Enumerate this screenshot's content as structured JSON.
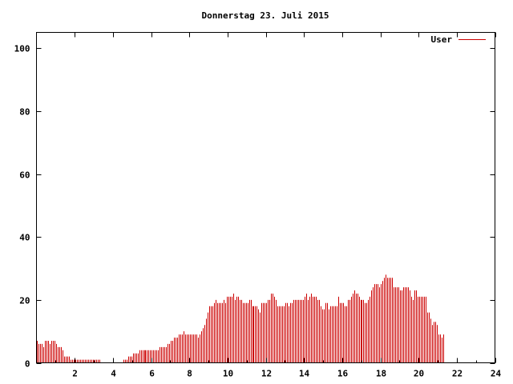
{
  "chart_data": {
    "type": "bar",
    "title": "Donnerstag 23. Juli 2015",
    "xlabel": "",
    "ylabel": "",
    "xlim": [
      0,
      24
    ],
    "ylim": [
      0,
      105
    ],
    "x_ticks": [
      2,
      4,
      6,
      8,
      10,
      12,
      14,
      16,
      18,
      20,
      22,
      24
    ],
    "y_ticks": [
      0,
      20,
      40,
      60,
      80,
      100
    ],
    "grid": false,
    "legend": "top-right",
    "series": [
      {
        "name": "User",
        "color": "#cc0000",
        "interval_hours": 0.0833,
        "values": [
          7,
          6,
          6,
          6,
          5,
          7,
          7,
          7,
          6,
          7,
          7,
          7,
          6,
          5,
          5,
          5,
          4,
          2,
          2,
          2,
          2,
          1,
          1,
          1,
          1,
          1,
          1,
          1,
          1,
          1,
          1,
          1,
          1,
          1,
          1,
          1,
          1,
          1,
          1,
          1,
          0,
          0,
          0,
          0,
          0,
          0,
          0,
          0,
          0,
          0,
          0,
          0,
          0,
          0,
          1,
          1,
          1,
          2,
          2,
          2,
          3,
          3,
          3,
          3,
          4,
          4,
          4,
          4,
          4,
          4,
          4,
          4,
          4,
          4,
          4,
          4,
          4,
          5,
          5,
          5,
          5,
          5,
          6,
          6,
          7,
          7,
          8,
          8,
          8,
          9,
          9,
          9,
          10,
          9,
          9,
          9,
          9,
          9,
          9,
          9,
          9,
          8,
          9,
          10,
          11,
          12,
          14,
          16,
          18,
          18,
          18,
          19,
          20,
          19,
          19,
          19,
          19,
          20,
          19,
          21,
          21,
          21,
          21,
          22,
          20,
          21,
          21,
          20,
          20,
          19,
          19,
          19,
          19,
          20,
          20,
          18,
          18,
          18,
          18,
          17,
          16,
          19,
          19,
          19,
          19,
          20,
          20,
          22,
          22,
          21,
          20,
          18,
          18,
          18,
          18,
          18,
          19,
          19,
          18,
          19,
          19,
          20,
          20,
          20,
          20,
          20,
          20,
          20,
          21,
          22,
          20,
          21,
          22,
          21,
          21,
          21,
          20,
          20,
          18,
          17,
          17,
          19,
          19,
          17,
          18,
          18,
          18,
          18,
          18,
          21,
          19,
          19,
          19,
          18,
          18,
          20,
          20,
          21,
          22,
          23,
          22,
          22,
          21,
          20,
          20,
          20,
          19,
          19,
          20,
          21,
          23,
          24,
          25,
          25,
          25,
          24,
          25,
          26,
          27,
          28,
          27,
          27,
          27,
          27,
          24,
          24,
          24,
          24,
          23,
          23,
          24,
          24,
          24,
          24,
          23,
          21,
          20,
          23,
          23,
          21,
          21,
          21,
          21,
          21,
          21,
          16,
          16,
          14,
          12,
          13,
          13,
          12,
          9,
          9,
          8,
          9
        ]
      }
    ]
  }
}
